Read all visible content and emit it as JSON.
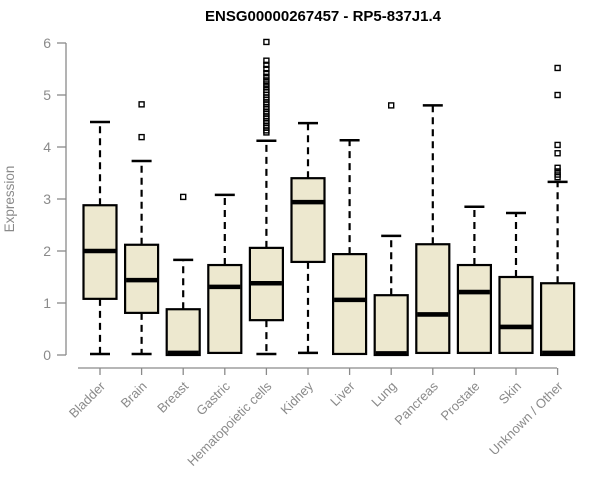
{
  "chart_data": {
    "type": "boxplot",
    "title": "ENSG00000267457 - RP5-837J1.4",
    "ylabel": "Expression",
    "xlabel": "",
    "ylim": [
      0,
      6.2
    ],
    "yticks": [
      0,
      1,
      2,
      3,
      4,
      5,
      6
    ],
    "grid": "off",
    "legend": "none",
    "categories": [
      "Bladder",
      "Brain",
      "Breast",
      "Gastric",
      "Hematopoietic cells",
      "Kidney",
      "Liver",
      "Lung",
      "Pancreas",
      "Prostate",
      "Skin",
      "Unknown / Other"
    ],
    "series": [
      {
        "category": "Bladder",
        "min": 0.02,
        "q1": 1.08,
        "median": 2.0,
        "q3": 2.88,
        "max": 4.48,
        "outliers": []
      },
      {
        "category": "Brain",
        "min": 0.02,
        "q1": 0.81,
        "median": 1.44,
        "q3": 2.12,
        "max": 3.73,
        "outliers": [
          4.19,
          4.82
        ]
      },
      {
        "category": "Breast",
        "min": 0.0,
        "q1": 0.0,
        "median": 0.04,
        "q3": 0.88,
        "max": 1.83,
        "outliers": [
          3.04
        ]
      },
      {
        "category": "Gastric",
        "min": 0.04,
        "q1": 0.04,
        "median": 1.31,
        "q3": 1.73,
        "max": 3.08,
        "outliers": []
      },
      {
        "category": "Hematopoietic cells",
        "min": 0.02,
        "q1": 0.67,
        "median": 1.38,
        "q3": 2.06,
        "max": 4.12,
        "outliers": [
          4.28,
          4.32,
          4.37,
          4.41,
          4.46,
          4.5,
          4.55,
          4.59,
          4.64,
          4.68,
          4.73,
          4.77,
          4.82,
          4.86,
          4.91,
          4.95,
          5.0,
          5.05,
          5.1,
          5.16,
          5.22,
          5.28,
          5.35,
          5.42,
          5.5,
          5.58,
          5.66,
          6.02
        ]
      },
      {
        "category": "Kidney",
        "min": 0.04,
        "q1": 1.79,
        "median": 2.94,
        "q3": 3.4,
        "max": 4.46,
        "outliers": []
      },
      {
        "category": "Liver",
        "min": 0.02,
        "q1": 0.02,
        "median": 1.06,
        "q3": 1.94,
        "max": 4.13,
        "outliers": []
      },
      {
        "category": "Lung",
        "min": 0.0,
        "q1": 0.0,
        "median": 0.03,
        "q3": 1.15,
        "max": 2.29,
        "outliers": [
          4.8
        ]
      },
      {
        "category": "Pancreas",
        "min": 0.04,
        "q1": 0.04,
        "median": 0.78,
        "q3": 2.13,
        "max": 4.8,
        "outliers": []
      },
      {
        "category": "Prostate",
        "min": 0.04,
        "q1": 0.04,
        "median": 1.21,
        "q3": 1.73,
        "max": 2.85,
        "outliers": []
      },
      {
        "category": "Skin",
        "min": 0.04,
        "q1": 0.04,
        "median": 0.54,
        "q3": 1.5,
        "max": 2.73,
        "outliers": []
      },
      {
        "category": "Unknown / Other",
        "min": 0.0,
        "q1": 0.0,
        "median": 0.04,
        "q3": 1.38,
        "max": 3.33,
        "outliers": [
          3.42,
          3.47,
          3.53,
          3.6,
          3.88,
          4.04,
          5.0,
          5.52
        ]
      }
    ],
    "colors": {
      "box_fill": "#EDE8CF",
      "box_stroke": "#000000",
      "median_stroke": "#000000",
      "whisker_stroke": "#000000",
      "outlier_stroke": "#000000",
      "axis": "#8a8a8a",
      "tick_text": "#8a8a8a",
      "title_text": "#000000"
    }
  }
}
